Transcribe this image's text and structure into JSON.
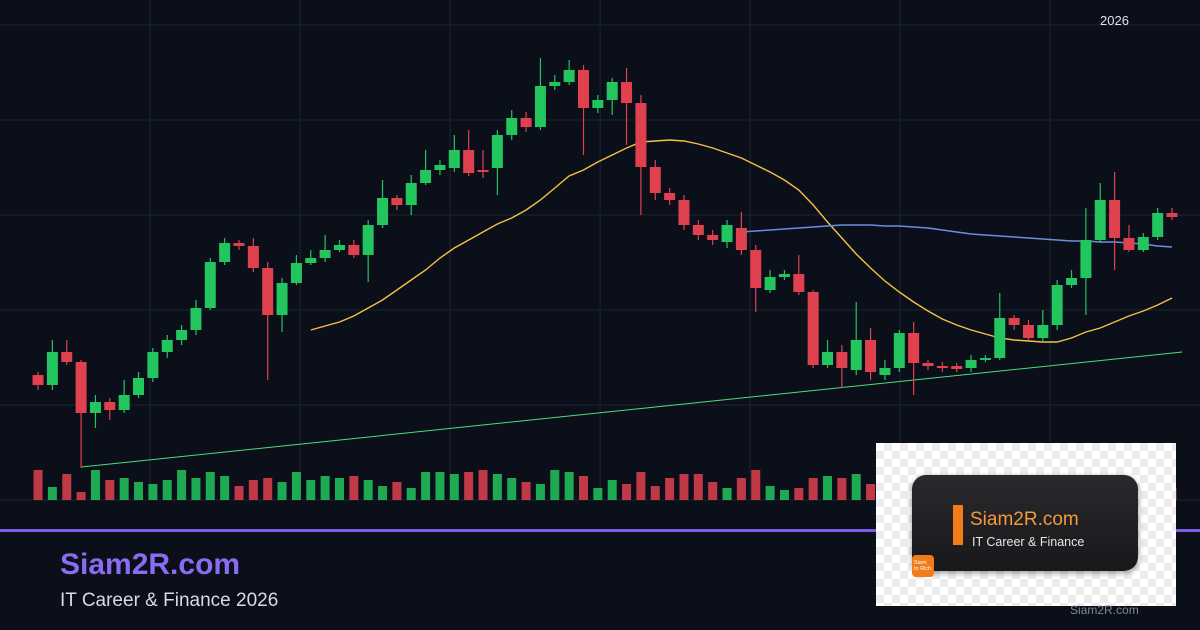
{
  "chart_data": {
    "type": "candlestick",
    "corner_label": "2026",
    "up_color": "#22c55e",
    "down_color": "#e0414f",
    "grid": true,
    "xlim": [
      -2.65,
      80.95
    ],
    "xticks": [
      7.8,
      18.26,
      28.71,
      39.16,
      49.61,
      60.06,
      70.51
    ],
    "ylim": [
      0,
      475
    ],
    "yticks": [
      475,
      380,
      285,
      190,
      95,
      0
    ],
    "open": [
      125,
      115,
      148,
      138,
      87,
      98,
      90,
      105,
      122,
      148,
      160,
      170,
      192,
      238,
      257,
      254,
      232,
      185,
      217,
      237,
      242,
      250,
      255,
      245,
      275,
      302,
      295,
      317,
      330,
      332,
      350,
      330,
      332,
      365,
      382,
      373,
      414,
      418,
      430,
      392,
      400,
      418,
      397,
      333,
      307,
      300,
      275,
      265,
      258,
      272,
      250,
      210,
      223,
      226,
      208,
      135,
      148,
      130,
      160,
      125,
      132,
      167,
      137,
      134,
      134,
      132,
      140,
      142,
      182,
      175,
      162,
      175,
      215,
      222,
      260,
      300,
      262,
      250,
      263,
      287
    ],
    "high": [
      128,
      160,
      160,
      140,
      105,
      102,
      120,
      128,
      152,
      165,
      175,
      200,
      242,
      262,
      260,
      262,
      238,
      222,
      245,
      250,
      265,
      260,
      260,
      280,
      320,
      305,
      325,
      350,
      340,
      365,
      370,
      350,
      370,
      390,
      388,
      442,
      425,
      440,
      435,
      405,
      422,
      432,
      405,
      340,
      312,
      305,
      280,
      270,
      280,
      288,
      255,
      230,
      230,
      245,
      210,
      160,
      155,
      198,
      172,
      140,
      170,
      178,
      140,
      138,
      137,
      145,
      145,
      207,
      185,
      180,
      190,
      220,
      230,
      292,
      317,
      328,
      275,
      267,
      292,
      292
    ],
    "low": [
      110,
      110,
      135,
      32,
      72,
      80,
      87,
      102,
      118,
      142,
      155,
      165,
      190,
      235,
      250,
      228,
      120,
      168,
      215,
      235,
      238,
      248,
      242,
      218,
      272,
      290,
      285,
      315,
      325,
      328,
      324,
      322,
      305,
      360,
      368,
      370,
      410,
      415,
      345,
      387,
      385,
      355,
      285,
      300,
      295,
      270,
      260,
      255,
      252,
      245,
      188,
      207,
      220,
      205,
      132,
      132,
      112,
      125,
      120,
      120,
      128,
      105,
      130,
      128,
      128,
      128,
      138,
      140,
      170,
      160,
      158,
      170,
      212,
      185,
      257,
      230,
      248,
      248,
      260,
      280
    ],
    "close": [
      115,
      148,
      138,
      87,
      98,
      90,
      105,
      122,
      148,
      160,
      170,
      192,
      238,
      257,
      254,
      232,
      185,
      217,
      237,
      242,
      250,
      255,
      245,
      275,
      302,
      295,
      317,
      330,
      335,
      350,
      327,
      328,
      365,
      382,
      373,
      414,
      418,
      430,
      392,
      400,
      418,
      397,
      333,
      307,
      300,
      275,
      265,
      260,
      275,
      250,
      212,
      223,
      226,
      208,
      135,
      148,
      132,
      160,
      128,
      132,
      167,
      137,
      134,
      132,
      131,
      140,
      142,
      182,
      175,
      162,
      175,
      215,
      222,
      260,
      300,
      262,
      250,
      263,
      287,
      283
    ],
    "volume": [
      30,
      13,
      26,
      8,
      30,
      20,
      22,
      18,
      16,
      20,
      30,
      22,
      28,
      24,
      14,
      20,
      22,
      18,
      28,
      20,
      24,
      22,
      24,
      20,
      14,
      18,
      12,
      28,
      28,
      26,
      28,
      30,
      26,
      22,
      18,
      16,
      30,
      28,
      24,
      12,
      20,
      16,
      28,
      14,
      22,
      26,
      26,
      18,
      12,
      22,
      30,
      14,
      10,
      12,
      22,
      24,
      22,
      26,
      16,
      24,
      20,
      18,
      22,
      16,
      24,
      20,
      18,
      22,
      16,
      20,
      14,
      26,
      22,
      18,
      24,
      20,
      22,
      24,
      18,
      12
    ],
    "series": [
      {
        "color": "#f5c044",
        "values": [
          null,
          null,
          null,
          null,
          null,
          null,
          null,
          null,
          null,
          null,
          null,
          null,
          null,
          null,
          null,
          null,
          null,
          null,
          null,
          170,
          174,
          178,
          184,
          192,
          200,
          210,
          220,
          230,
          242,
          252,
          260,
          268,
          276,
          282,
          290,
          300,
          312,
          324,
          330,
          338,
          345,
          352,
          358,
          359,
          360,
          359,
          356,
          352,
          347,
          342,
          335,
          328,
          320,
          310,
          295,
          278,
          262,
          246,
          232,
          219,
          208,
          198,
          189,
          181,
          175,
          170,
          166,
          162,
          160,
          159,
          158,
          158,
          162,
          168,
          172,
          178,
          184,
          189,
          195,
          202
        ]
      },
      {
        "color": "#6a8fe0",
        "values": [
          null,
          null,
          null,
          null,
          null,
          null,
          null,
          null,
          null,
          null,
          null,
          null,
          null,
          null,
          null,
          null,
          null,
          null,
          null,
          null,
          null,
          null,
          null,
          null,
          null,
          null,
          null,
          null,
          null,
          null,
          null,
          null,
          null,
          null,
          null,
          null,
          null,
          null,
          null,
          null,
          null,
          null,
          null,
          null,
          null,
          null,
          null,
          null,
          null,
          268,
          269,
          270,
          271,
          272,
          273,
          274,
          275,
          275,
          275,
          274,
          274,
          273,
          272,
          270,
          268,
          266,
          265,
          264,
          263,
          262,
          261,
          260,
          259,
          259,
          258,
          258,
          257,
          256,
          254,
          253
        ]
      },
      {
        "color": "#4ade80",
        "x": [
          3,
          79.7
        ],
        "values": [
          33,
          148
        ]
      }
    ]
  },
  "footer": {
    "title": "Siam2R.com",
    "subtitle": "IT Career & Finance 2026"
  },
  "logo": {
    "title": "Siam2R.com",
    "subtitle": "IT Career & Finance",
    "badge": [
      "Siam",
      "to Rich"
    ],
    "watermark": "Siam2R.com"
  }
}
